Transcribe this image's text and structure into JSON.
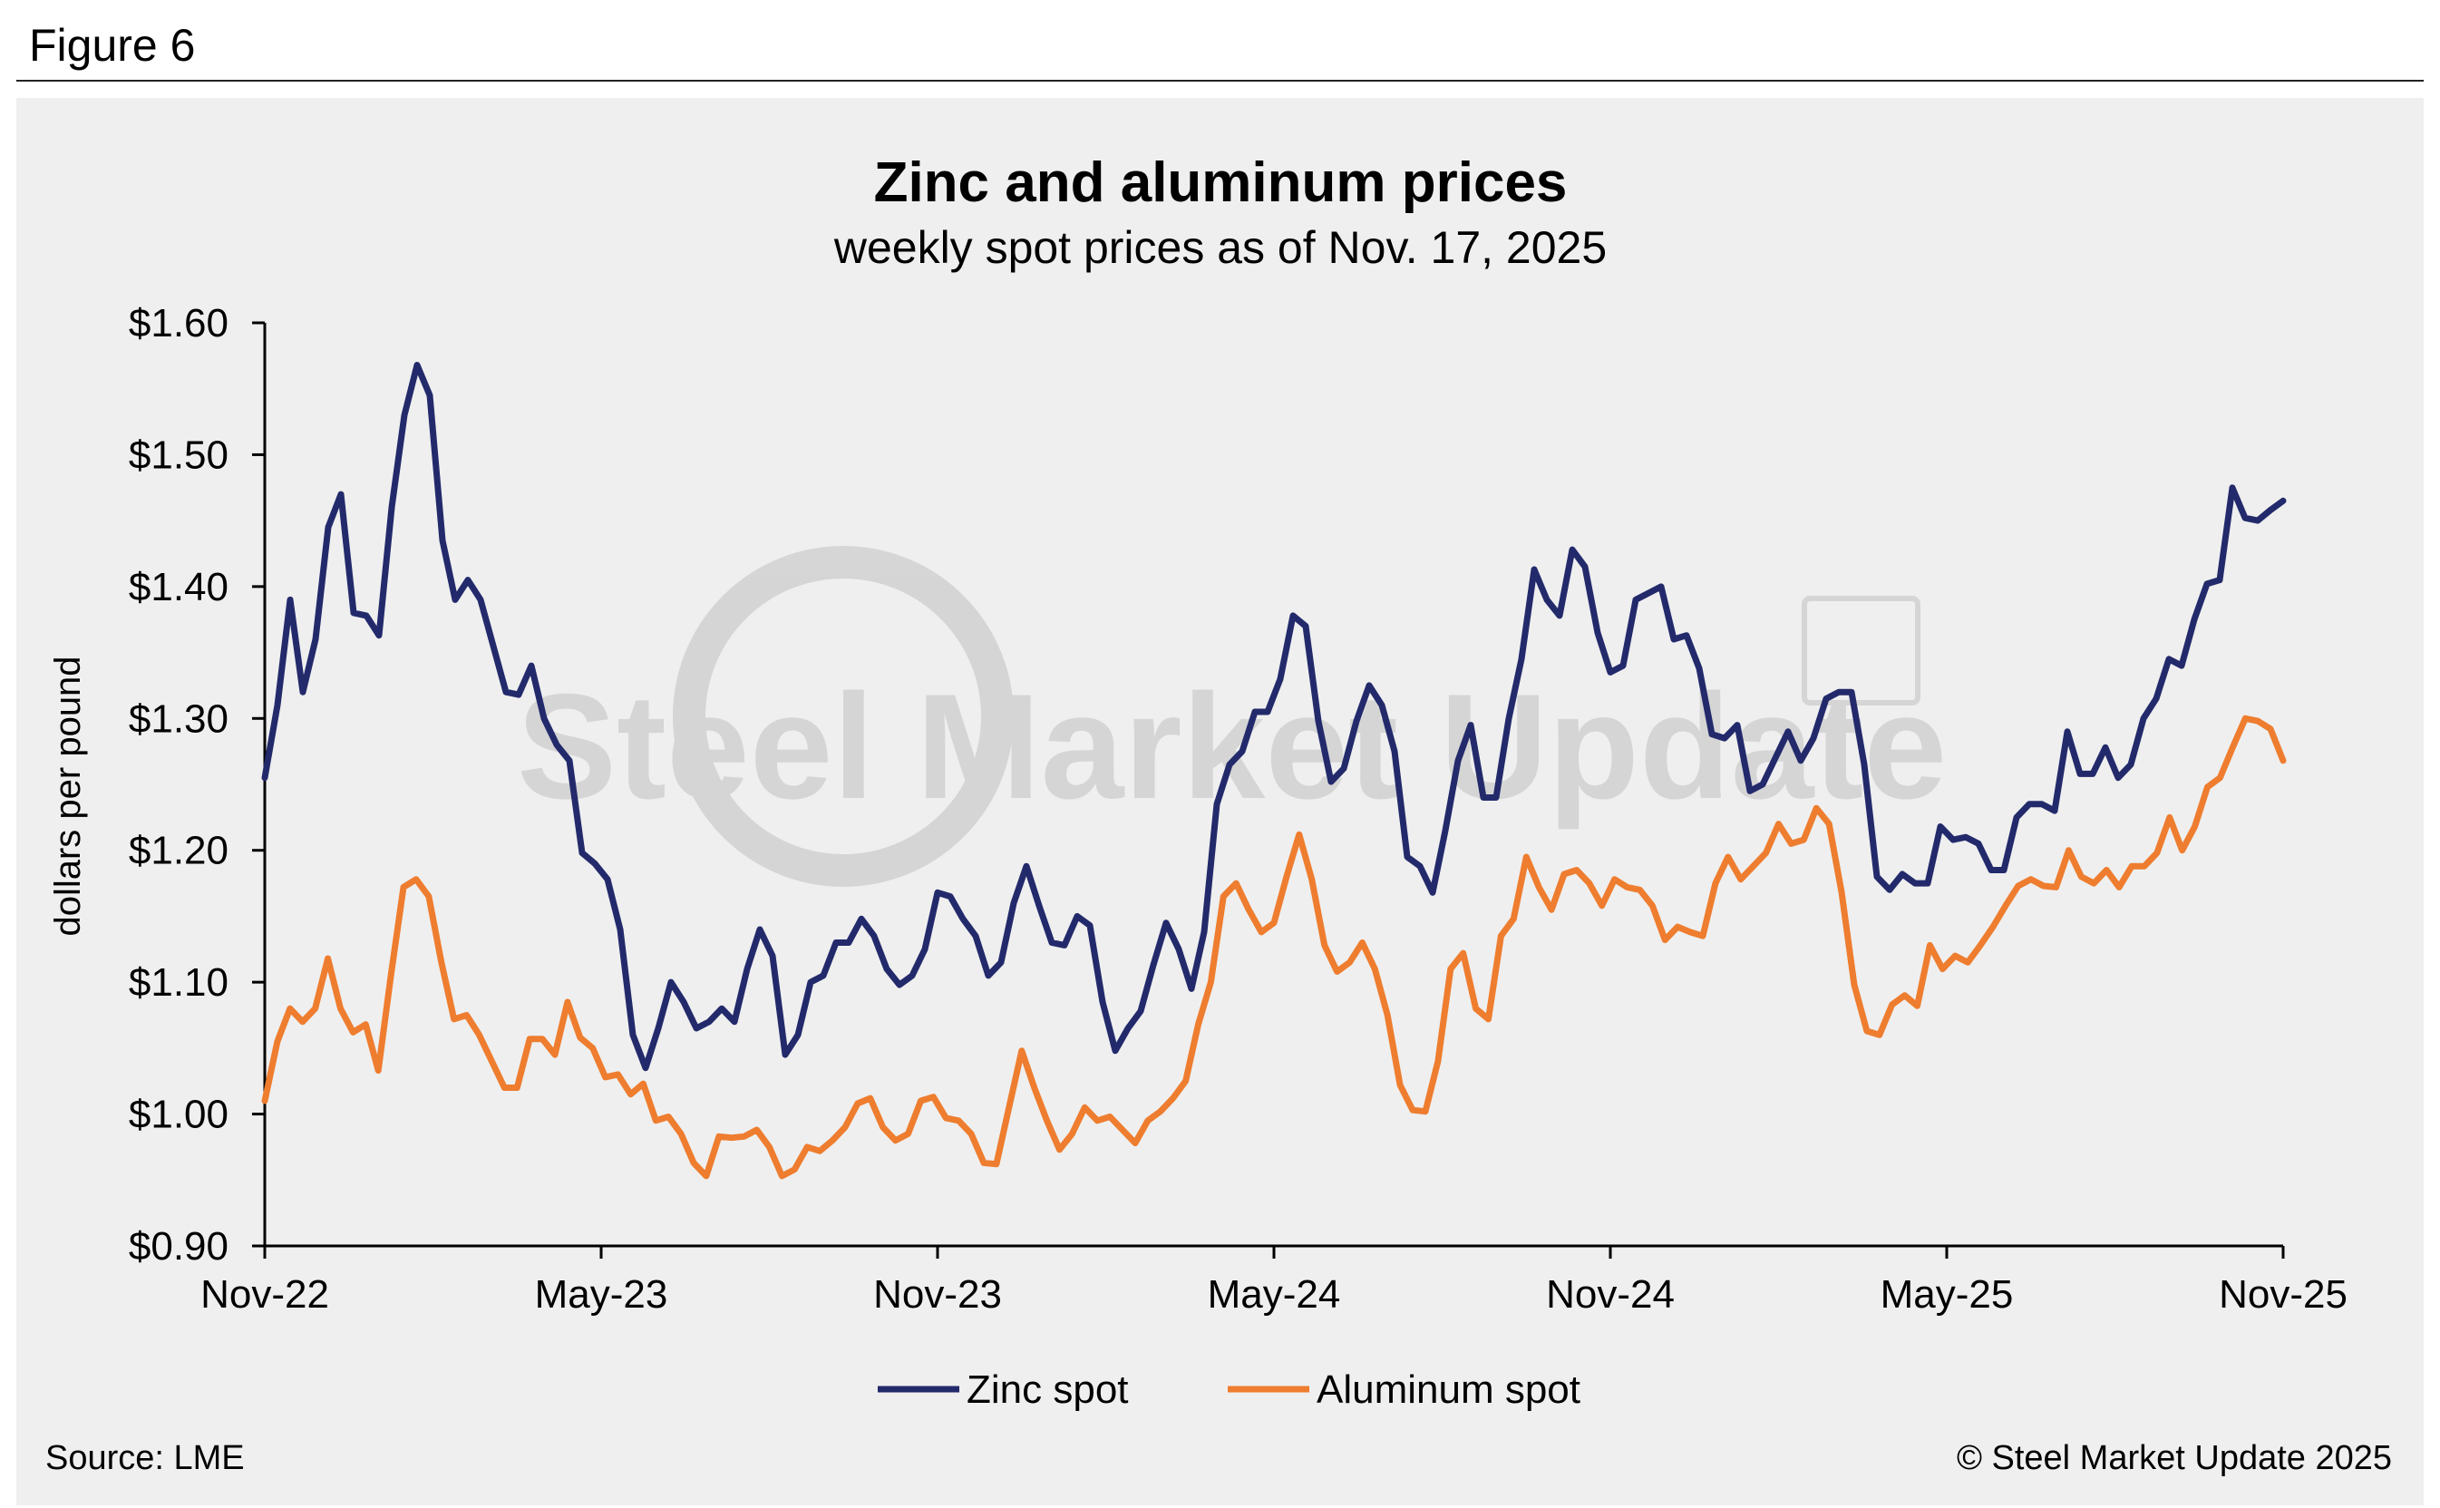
{
  "figure_label": "Figure 6",
  "source_text": "Source: LME",
  "copyright_text": "© Steel Market Update 2025",
  "watermark": "Steel Market Update",
  "chart_data": {
    "type": "line",
    "title": "Zinc and aluminum prices",
    "subtitle": "weekly spot prices as of Nov. 17, 2025",
    "ylabel": "dollars per pound",
    "xlabel": "",
    "ylim": [
      0.9,
      1.6
    ],
    "yticks": [
      0.9,
      1.0,
      1.1,
      1.2,
      1.3,
      1.4,
      1.5,
      1.6
    ],
    "ytick_labels": [
      "$0.90",
      "$1.00",
      "$1.10",
      "$1.20",
      "$1.30",
      "$1.40",
      "$1.50",
      "$1.60"
    ],
    "xlim": [
      "Nov-22",
      "Nov-25"
    ],
    "xtick_labels": [
      "Nov-22",
      "May-23",
      "Nov-23",
      "May-24",
      "Nov-24",
      "May-25",
      "Nov-25"
    ],
    "grid": false,
    "legend_position": "bottom-center",
    "series": [
      {
        "name": "Zinc spot",
        "color": "#232a6b",
        "values": [
          1.255,
          1.31,
          1.39,
          1.32,
          1.36,
          1.445,
          1.47,
          1.38,
          1.378,
          1.363,
          1.46,
          1.53,
          1.568,
          1.545,
          1.435,
          1.39,
          1.405,
          1.39,
          1.355,
          1.32,
          1.318,
          1.34,
          1.3,
          1.28,
          1.268,
          1.198,
          1.19,
          1.178,
          1.14,
          1.06,
          1.035,
          1.065,
          1.1,
          1.085,
          1.065,
          1.07,
          1.08,
          1.07,
          1.11,
          1.14,
          1.12,
          1.045,
          1.06,
          1.1,
          1.105,
          1.13,
          1.13,
          1.148,
          1.135,
          1.11,
          1.098,
          1.105,
          1.125,
          1.168,
          1.165,
          1.148,
          1.135,
          1.105,
          1.115,
          1.16,
          1.188,
          1.158,
          1.13,
          1.128,
          1.15,
          1.143,
          1.085,
          1.048,
          1.065,
          1.078,
          1.113,
          1.145,
          1.125,
          1.095,
          1.138,
          1.235,
          1.265,
          1.275,
          1.305,
          1.305,
          1.33,
          1.378,
          1.37,
          1.298,
          1.252,
          1.262,
          1.298,
          1.325,
          1.31,
          1.275,
          1.195,
          1.188,
          1.168,
          1.215,
          1.268,
          1.295,
          1.24,
          1.24,
          1.3,
          1.345,
          1.413,
          1.39,
          1.378,
          1.428,
          1.415,
          1.365,
          1.335,
          1.34,
          1.39,
          1.395,
          1.4,
          1.36,
          1.363,
          1.338,
          1.288,
          1.285,
          1.295,
          1.245,
          1.25,
          1.27,
          1.29,
          1.268,
          1.285,
          1.315,
          1.32,
          1.32,
          1.265,
          1.18,
          1.17,
          1.182,
          1.175,
          1.175,
          1.218,
          1.208,
          1.21,
          1.205,
          1.185,
          1.185,
          1.225,
          1.235,
          1.235,
          1.23,
          1.29,
          1.258,
          1.258,
          1.278,
          1.255,
          1.265,
          1.3,
          1.315,
          1.345,
          1.34,
          1.375,
          1.402,
          1.405,
          1.475,
          1.452,
          1.45,
          1.458,
          1.465
        ]
      },
      {
        "name": "Aluminum spot",
        "color": "#ee7d2f",
        "values": [
          1.01,
          1.055,
          1.08,
          1.07,
          1.08,
          1.118,
          1.08,
          1.062,
          1.068,
          1.033,
          1.105,
          1.172,
          1.178,
          1.165,
          1.115,
          1.072,
          1.075,
          1.06,
          1.04,
          1.02,
          1.02,
          1.057,
          1.057,
          1.045,
          1.085,
          1.058,
          1.05,
          1.028,
          1.03,
          1.015,
          1.023,
          0.995,
          0.998,
          0.985,
          0.963,
          0.953,
          0.983,
          0.982,
          0.983,
          0.988,
          0.975,
          0.953,
          0.958,
          0.975,
          0.972,
          0.98,
          0.99,
          1.008,
          1.012,
          0.99,
          0.98,
          0.985,
          1.01,
          1.013,
          0.997,
          0.995,
          0.985,
          0.963,
          0.962,
          1.005,
          1.048,
          1.02,
          0.995,
          0.973,
          0.985,
          1.005,
          0.995,
          0.998,
          0.988,
          0.978,
          0.995,
          1.002,
          1.012,
          1.025,
          1.068,
          1.1,
          1.165,
          1.175,
          1.155,
          1.138,
          1.145,
          1.18,
          1.212,
          1.178,
          1.128,
          1.108,
          1.115,
          1.13,
          1.11,
          1.075,
          1.022,
          1.003,
          1.002,
          1.04,
          1.11,
          1.122,
          1.08,
          1.072,
          1.135,
          1.148,
          1.195,
          1.172,
          1.155,
          1.182,
          1.185,
          1.175,
          1.158,
          1.178,
          1.172,
          1.17,
          1.158,
          1.132,
          1.142,
          1.138,
          1.135,
          1.175,
          1.195,
          1.178,
          1.188,
          1.198,
          1.22,
          1.205,
          1.208,
          1.232,
          1.22,
          1.168,
          1.098,
          1.063,
          1.06,
          1.083,
          1.09,
          1.082,
          1.128,
          1.11,
          1.12,
          1.115,
          1.128,
          1.142,
          1.158,
          1.173,
          1.178,
          1.173,
          1.172,
          1.2,
          1.18,
          1.175,
          1.185,
          1.172,
          1.188,
          1.188,
          1.198,
          1.225,
          1.2,
          1.218,
          1.248,
          1.255,
          1.278,
          1.3,
          1.298,
          1.292,
          1.268
        ]
      }
    ]
  }
}
